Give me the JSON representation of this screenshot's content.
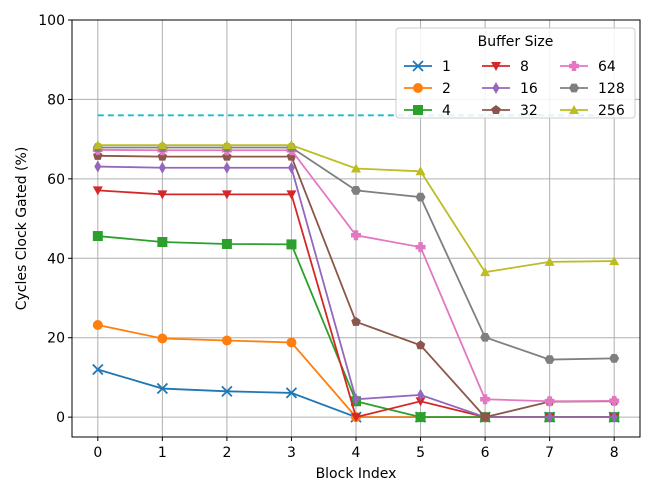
{
  "chart_data": {
    "type": "line",
    "title": "",
    "xlabel": "Block Index",
    "ylabel": "Cycles Clock Gated (%)",
    "x": [
      0,
      1,
      2,
      3,
      4,
      5,
      6,
      7,
      8
    ],
    "xlim": [
      -0.4,
      8.4
    ],
    "ylim": [
      -5,
      100
    ],
    "xticks": [
      "0",
      "1",
      "2",
      "3",
      "4",
      "5",
      "6",
      "7",
      "8"
    ],
    "yticks": [
      "0",
      "20",
      "40",
      "60",
      "80",
      "100"
    ],
    "grid": true,
    "legend": {
      "title": "Buffer Size",
      "placement": "top-right",
      "columns": 3
    },
    "reference_line": {
      "y": 76,
      "x_from": 0,
      "x_to": 8,
      "style": "dashed",
      "color": "#17becf"
    },
    "series": [
      {
        "name": "1",
        "color": "#1f77b4",
        "marker": "x",
        "values": [
          12,
          7.2,
          6.5,
          6.1,
          0,
          0,
          0,
          0,
          0
        ]
      },
      {
        "name": "2",
        "color": "#ff7f0e",
        "marker": "circle",
        "values": [
          23.2,
          19.8,
          19.3,
          18.8,
          0,
          0,
          0,
          0,
          0
        ]
      },
      {
        "name": "4",
        "color": "#2ca02c",
        "marker": "square",
        "values": [
          45.6,
          44.1,
          43.6,
          43.5,
          4,
          0,
          0,
          0,
          0
        ]
      },
      {
        "name": "8",
        "color": "#d62728",
        "marker": "tri-down",
        "values": [
          57.1,
          56.1,
          56.1,
          56.1,
          0,
          4,
          0,
          0,
          0
        ]
      },
      {
        "name": "16",
        "color": "#9467bd",
        "marker": "diamond",
        "values": [
          63.1,
          62.8,
          62.8,
          62.8,
          4.5,
          5.6,
          0,
          0,
          0
        ]
      },
      {
        "name": "32",
        "color": "#8c564b",
        "marker": "pentagon",
        "values": [
          65.8,
          65.6,
          65.6,
          65.6,
          24,
          18.1,
          0,
          3.9,
          4
        ]
      },
      {
        "name": "64",
        "color": "#e377c2",
        "marker": "plus",
        "values": [
          67.3,
          67.2,
          67.2,
          67.2,
          45.8,
          42.8,
          4.5,
          4,
          4.1
        ]
      },
      {
        "name": "128",
        "color": "#7f7f7f",
        "marker": "hexagon",
        "values": [
          67.9,
          67.9,
          67.9,
          67.9,
          57.1,
          55.4,
          20.1,
          14.5,
          14.8
        ]
      },
      {
        "name": "256",
        "color": "#bcbd22",
        "marker": "tri-up",
        "values": [
          68.5,
          68.5,
          68.5,
          68.5,
          62.6,
          61.9,
          36.5,
          39.1,
          39.3
        ]
      }
    ]
  }
}
